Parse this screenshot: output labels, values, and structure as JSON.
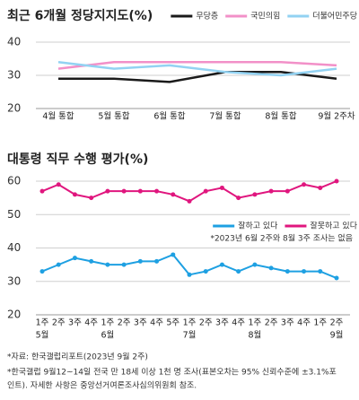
{
  "chart_data": [
    {
      "type": "line",
      "title": "최근 6개월 정당지지도(%)",
      "categories": [
        "4월 통합",
        "5월 통합",
        "6월 통합",
        "7월 통합",
        "8월 통합",
        "9월 2주차"
      ],
      "series": [
        {
          "name": "무당층",
          "color": "#1a1a1a",
          "values": [
            29,
            29,
            28,
            31,
            31,
            29
          ]
        },
        {
          "name": "국민의힘",
          "color": "#f290c8",
          "values": [
            32,
            34,
            34,
            34,
            34,
            33
          ]
        },
        {
          "name": "더불어민주당",
          "color": "#92d2f2",
          "values": [
            34,
            32,
            33,
            31,
            30,
            32
          ]
        }
      ],
      "ylim": [
        20,
        40
      ],
      "yticks": [
        20,
        30,
        40
      ],
      "grid": true,
      "markers": false
    },
    {
      "type": "line",
      "title": "대통령 직무 수행 평가(%)",
      "categories": [
        "1주",
        "2주",
        "3주",
        "4주",
        "1주",
        "2주",
        "3주",
        "4주",
        "5주",
        "1주",
        "2주",
        "3주",
        "4주",
        "1주",
        "2주",
        "3주",
        "4주",
        "1주",
        "2주"
      ],
      "category_groups": [
        "5월",
        null,
        null,
        null,
        "6월",
        null,
        null,
        null,
        null,
        "7월",
        null,
        null,
        null,
        "8월",
        null,
        null,
        null,
        null,
        "9월"
      ],
      "series": [
        {
          "name": "잘하고 있다",
          "color": "#1ea0e2",
          "values": [
            33,
            35,
            37,
            36,
            35,
            35,
            36,
            36,
            38,
            32,
            33,
            35,
            33,
            35,
            34,
            33,
            33,
            33,
            31
          ]
        },
        {
          "name": "잘못하고 있다",
          "color": "#e0167e",
          "values": [
            57,
            59,
            56,
            55,
            57,
            57,
            57,
            57,
            56,
            54,
            57,
            58,
            55,
            56,
            57,
            57,
            59,
            58,
            60
          ]
        }
      ],
      "annotation": "*2023년 6월 2주와 8월 3주 조사는 없음",
      "ylim": [
        20,
        60
      ],
      "yticks": [
        20,
        30,
        40,
        50,
        60
      ],
      "grid": true,
      "markers": true
    }
  ],
  "notes": [
    "*자료: 한국갤럽리포트(2023년 9월 2주)",
    "*한국갤럽 9월12~14일 전국 만 18세 이상 1천 명 조사(표본오차는 95% 신뢰수준에 ±3.1%포",
    "인트). 자세한 사항은 중앙선거여론조사심의위원회 참조."
  ]
}
